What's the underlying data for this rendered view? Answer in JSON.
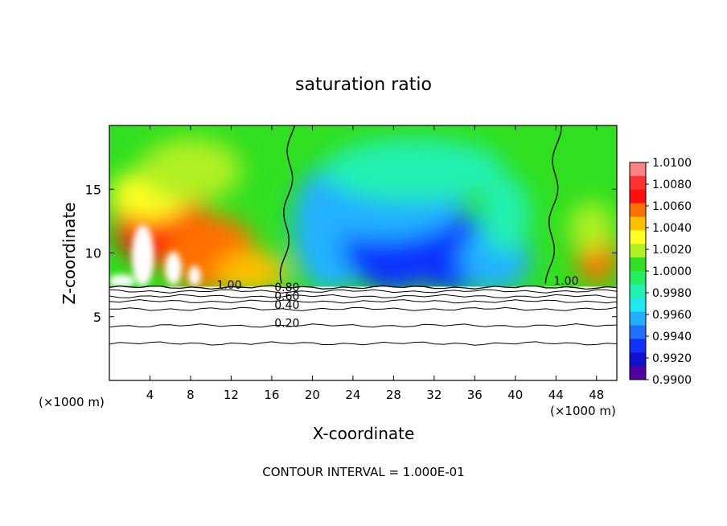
{
  "chart_data": {
    "type": "heatmap",
    "title": "saturation ratio",
    "xlabel": "X-coordinate",
    "ylabel": "Z-coordinate",
    "x_unit_left": "(×1000 m)",
    "x_unit_right": "(×1000 m)",
    "xlim": [
      0,
      50
    ],
    "ylim": [
      0,
      20
    ],
    "xticks": [
      4,
      8,
      12,
      16,
      20,
      24,
      28,
      32,
      36,
      40,
      44,
      48
    ],
    "yticks": [
      5,
      10,
      15
    ],
    "footer": "CONTOUR INTERVAL = 1.000E-01",
    "colorbar": {
      "min": 0.99,
      "max": 1.01,
      "labels": [
        "1.0100",
        "1.0080",
        "1.0060",
        "1.0040",
        "1.0020",
        "1.0000",
        "0.9980",
        "0.9960",
        "0.9940",
        "0.9920",
        "0.9900"
      ],
      "colors": [
        "#ff8080",
        "#ff3030",
        "#ff1010",
        "#ff7000",
        "#ffc000",
        "#ffff20",
        "#b0f020",
        "#30e020",
        "#20f060",
        "#20f0b0",
        "#20e8f0",
        "#20b0ff",
        "#2070ff",
        "#1030ff",
        "#1010d0",
        "#5000a0"
      ]
    },
    "contour_labels": [
      {
        "text": "1.00",
        "x": 11.8,
        "y": 7.2
      },
      {
        "text": "0.80",
        "x": 17.5,
        "y": 7.0
      },
      {
        "text": "0.60",
        "x": 17.5,
        "y": 6.3
      },
      {
        "text": "0.40",
        "x": 17.5,
        "y": 5.6
      },
      {
        "text": "0.20",
        "x": 17.5,
        "y": 4.2
      },
      {
        "text": "1.00",
        "x": 45.0,
        "y": 7.5
      }
    ],
    "field_blobs": [
      {
        "cx": 5,
        "cy": 12.5,
        "rx": 4.5,
        "ry": 3.5,
        "level": 1.0065
      },
      {
        "cx": 4,
        "cy": 14.5,
        "rx": 4,
        "ry": 2,
        "level": 1.003
      },
      {
        "cx": 10,
        "cy": 10,
        "rx": 4.5,
        "ry": 3,
        "level": 1.0055
      },
      {
        "cx": 14,
        "cy": 8.5,
        "rx": 3.5,
        "ry": 1.6,
        "level": 1.0045
      },
      {
        "cx": 8,
        "cy": 16.5,
        "rx": 5,
        "ry": 2.5,
        "level": 1.0015
      },
      {
        "cx": 22,
        "cy": 12,
        "rx": 4,
        "ry": 5,
        "level": 0.996
      },
      {
        "cx": 28,
        "cy": 11,
        "rx": 5,
        "ry": 4,
        "level": 0.9925
      },
      {
        "cx": 34,
        "cy": 10,
        "rx": 5,
        "ry": 3,
        "level": 0.9935
      },
      {
        "cx": 27,
        "cy": 14,
        "rx": 8,
        "ry": 3,
        "level": 0.996
      },
      {
        "cx": 38,
        "cy": 9.5,
        "rx": 3.5,
        "ry": 2.5,
        "level": 0.995
      },
      {
        "cx": 39,
        "cy": 13,
        "rx": 2.5,
        "ry": 3,
        "level": 0.9975
      },
      {
        "cx": 30,
        "cy": 16.5,
        "rx": 9,
        "ry": 2.5,
        "level": 0.9985
      },
      {
        "cx": 48,
        "cy": 10,
        "rx": 2,
        "ry": 2.5,
        "level": 1.006
      },
      {
        "cx": 47.5,
        "cy": 12,
        "rx": 2.2,
        "ry": 2,
        "level": 1.002
      }
    ],
    "white_patches": [
      {
        "cx": 3.3,
        "cy": 9.8,
        "rx": 1.1,
        "ry": 2.4
      },
      {
        "cx": 6.3,
        "cy": 8.8,
        "rx": 0.8,
        "ry": 1.3
      },
      {
        "cx": 8.4,
        "cy": 8.2,
        "rx": 0.6,
        "ry": 0.8
      },
      {
        "cx": 1.2,
        "cy": 7.8,
        "rx": 1.3,
        "ry": 0.5
      }
    ],
    "contour_lines_y": [
      7.3,
      7.0,
      6.6,
      6.2,
      5.6,
      4.3,
      2.9
    ]
  }
}
